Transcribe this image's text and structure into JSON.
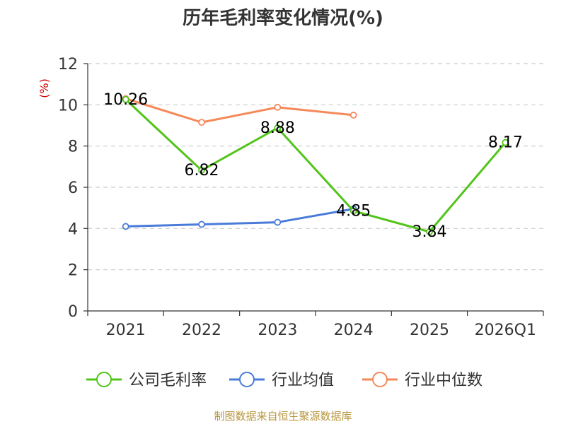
{
  "chart_data": {
    "type": "line",
    "title": "历年毛利率变化情况(%)",
    "ylabel": "(%)",
    "ylabel_color": "#cc0000",
    "ylim": [
      0,
      12
    ],
    "yticks": [
      "0",
      "2",
      "4",
      "6",
      "8",
      "10",
      "12"
    ],
    "categories": [
      "2021",
      "2022",
      "2023",
      "2024",
      "2025",
      "2026Q1"
    ],
    "grid": true,
    "legend_position": "bottom",
    "series": [
      {
        "name": "公司毛利率",
        "color": "#52c41a",
        "values": [
          10.26,
          6.82,
          8.88,
          4.85,
          3.84,
          8.17
        ],
        "labels": [
          "10.26",
          "6.82",
          "8.88",
          "4.85",
          "3.84",
          "8.17"
        ],
        "show_labels": true
      },
      {
        "name": "行业均值",
        "color": "#4a7bd8",
        "values": [
          4.1,
          4.2,
          4.3,
          4.95,
          null,
          null
        ],
        "show_labels": false
      },
      {
        "name": "行业中位数",
        "color": "#f5895a",
        "values": [
          10.3,
          9.15,
          9.88,
          9.5,
          null,
          null
        ],
        "show_labels": false
      }
    ]
  },
  "source_text": "制图数据来自恒生聚源数据库",
  "source_color": "#b8963e"
}
